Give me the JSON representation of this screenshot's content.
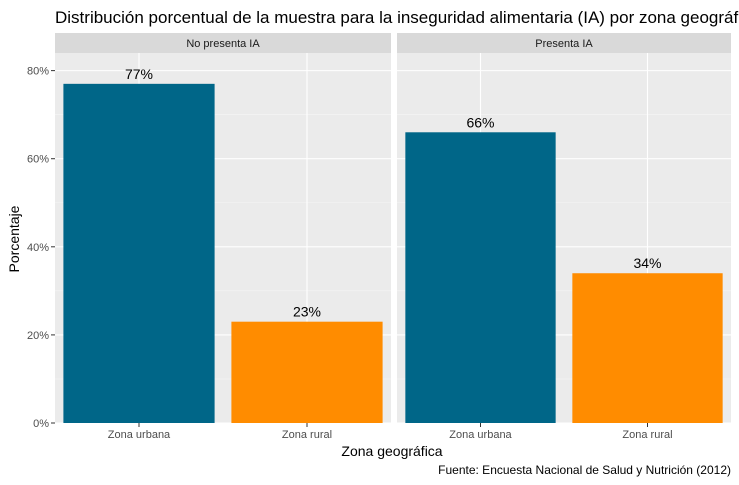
{
  "chart_data": {
    "type": "bar",
    "title": "Distribución porcentual de la muestra para la inseguridad alimentaria (IA) por zona geográfica",
    "xlabel": "Zona geográfica",
    "ylabel": "Porcentaje",
    "caption": "Fuente: Encuesta Nacional de Salud y Nutrición (2012)",
    "categories": [
      "Zona urbana",
      "Zona rural"
    ],
    "ylim": [
      0,
      84
    ],
    "yticks": [
      0,
      20,
      40,
      60,
      80
    ],
    "ytick_labels": [
      "0%",
      "20%",
      "40%",
      "60%",
      "80%"
    ],
    "grid": true,
    "colors": {
      "Zona urbana": "#006688",
      "Zona rural": "#ff8c00"
    },
    "facets": [
      {
        "name": "No presenta IA",
        "values": [
          77,
          23
        ],
        "labels": [
          "77%",
          "23%"
        ]
      },
      {
        "name": "Presenta IA",
        "values": [
          66,
          34
        ],
        "labels": [
          "66%",
          "34%"
        ]
      }
    ]
  }
}
